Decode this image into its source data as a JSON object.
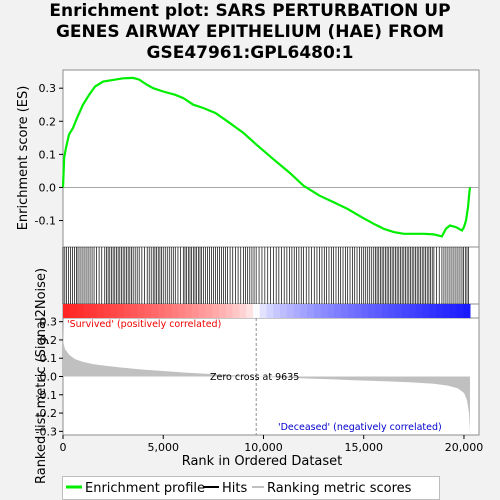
{
  "title_lines": [
    "Enrichment plot: SARS PERTURBATION UP",
    "GENES AIRWAY EPITHELIUM (HAE) FROM",
    "GSE47961:GPL6480:1"
  ],
  "colors": {
    "es_line": "#00ee00",
    "hit_line": "#000000",
    "metric_fill": "#c0c0c0",
    "positive_label": "#ee0000",
    "negative_label": "#0000cc",
    "heat_positive": "#ee0000",
    "heat_negative": "#0000cc"
  },
  "chart_data": [
    {
      "type": "line",
      "name": "enrichment-profile",
      "ylabel": "Enrichment score (ES)",
      "xlim": [
        0,
        20750
      ],
      "ylim": [
        -0.18,
        0.355
      ],
      "yticks": [
        -0.1,
        0.0,
        0.1,
        0.2,
        0.3
      ],
      "ytick_labels": [
        "-0.1",
        "0.0",
        "0.1",
        "0.2",
        "0.3"
      ],
      "grid": false,
      "points": [
        [
          0,
          0.0
        ],
        [
          60,
          0.09
        ],
        [
          150,
          0.12
        ],
        [
          300,
          0.16
        ],
        [
          500,
          0.18
        ],
        [
          700,
          0.21
        ],
        [
          1000,
          0.25
        ],
        [
          1300,
          0.28
        ],
        [
          1600,
          0.305
        ],
        [
          2000,
          0.32
        ],
        [
          2500,
          0.325
        ],
        [
          3000,
          0.33
        ],
        [
          3500,
          0.331
        ],
        [
          3800,
          0.326
        ],
        [
          4200,
          0.31
        ],
        [
          4500,
          0.3
        ],
        [
          5000,
          0.29
        ],
        [
          5600,
          0.28
        ],
        [
          6000,
          0.27
        ],
        [
          6500,
          0.25
        ],
        [
          7000,
          0.24
        ],
        [
          7600,
          0.225
        ],
        [
          8200,
          0.2
        ],
        [
          9000,
          0.165
        ],
        [
          9635,
          0.13
        ],
        [
          10500,
          0.085
        ],
        [
          11300,
          0.045
        ],
        [
          12000,
          0.005
        ],
        [
          12800,
          -0.025
        ],
        [
          13500,
          -0.045
        ],
        [
          14200,
          -0.065
        ],
        [
          14900,
          -0.09
        ],
        [
          15500,
          -0.11
        ],
        [
          16000,
          -0.125
        ],
        [
          16500,
          -0.135
        ],
        [
          17000,
          -0.14
        ],
        [
          17500,
          -0.14
        ],
        [
          18000,
          -0.14
        ],
        [
          18500,
          -0.142
        ],
        [
          18900,
          -0.148
        ],
        [
          19100,
          -0.125
        ],
        [
          19300,
          -0.115
        ],
        [
          19600,
          -0.12
        ],
        [
          19900,
          -0.13
        ],
        [
          20000,
          -0.12
        ],
        [
          20100,
          -0.1
        ],
        [
          20200,
          -0.06
        ],
        [
          20260,
          -0.02
        ],
        [
          20300,
          0.0
        ]
      ]
    },
    {
      "type": "bar",
      "name": "ranked-list-metric",
      "ylabel": "Ranked list metric (Signal2Noise)",
      "xlabel": "Rank in Ordered Dataset",
      "xlim": [
        0,
        20750
      ],
      "ylim": [
        -0.32,
        0.32
      ],
      "xticks": [
        0,
        5000,
        10000,
        15000,
        20000
      ],
      "xtick_labels": [
        "0",
        "5,000",
        "10,000",
        "15,000",
        "20,000"
      ],
      "yticks": [
        -0.3,
        -0.2,
        -0.1,
        0.0,
        0.1,
        0.2,
        0.3
      ],
      "ytick_labels": [
        "-0.3",
        "-0.2",
        "-0.1",
        "0.0",
        "0.1",
        "0.2",
        "0.3"
      ],
      "zero_cross_rank": 9635,
      "zero_cross_label": "Zero cross at 9635",
      "positive_label": "'Survived' (positively correlated)",
      "negative_label": "'Deceased' (negatively correlated)",
      "points": [
        [
          0,
          0.3
        ],
        [
          30,
          0.18
        ],
        [
          100,
          0.15
        ],
        [
          300,
          0.12
        ],
        [
          600,
          0.095
        ],
        [
          1000,
          0.08
        ],
        [
          1500,
          0.068
        ],
        [
          2000,
          0.06
        ],
        [
          3000,
          0.048
        ],
        [
          4000,
          0.038
        ],
        [
          5000,
          0.03
        ],
        [
          6000,
          0.022
        ],
        [
          7000,
          0.016
        ],
        [
          8000,
          0.01
        ],
        [
          9000,
          0.004
        ],
        [
          9635,
          0.0
        ],
        [
          10500,
          -0.004
        ],
        [
          11500,
          -0.008
        ],
        [
          12500,
          -0.012
        ],
        [
          13500,
          -0.016
        ],
        [
          14500,
          -0.02
        ],
        [
          15500,
          -0.024
        ],
        [
          16500,
          -0.028
        ],
        [
          17500,
          -0.033
        ],
        [
          18500,
          -0.04
        ],
        [
          19200,
          -0.05
        ],
        [
          19700,
          -0.065
        ],
        [
          20000,
          -0.09
        ],
        [
          20150,
          -0.13
        ],
        [
          20250,
          -0.2
        ],
        [
          20300,
          -0.3
        ]
      ]
    }
  ],
  "legend": {
    "items": [
      {
        "label": "Enrichment profile",
        "kind": "es"
      },
      {
        "label": "Hits",
        "kind": "hit"
      },
      {
        "label": "Ranking metric scores",
        "kind": "metric"
      }
    ]
  }
}
